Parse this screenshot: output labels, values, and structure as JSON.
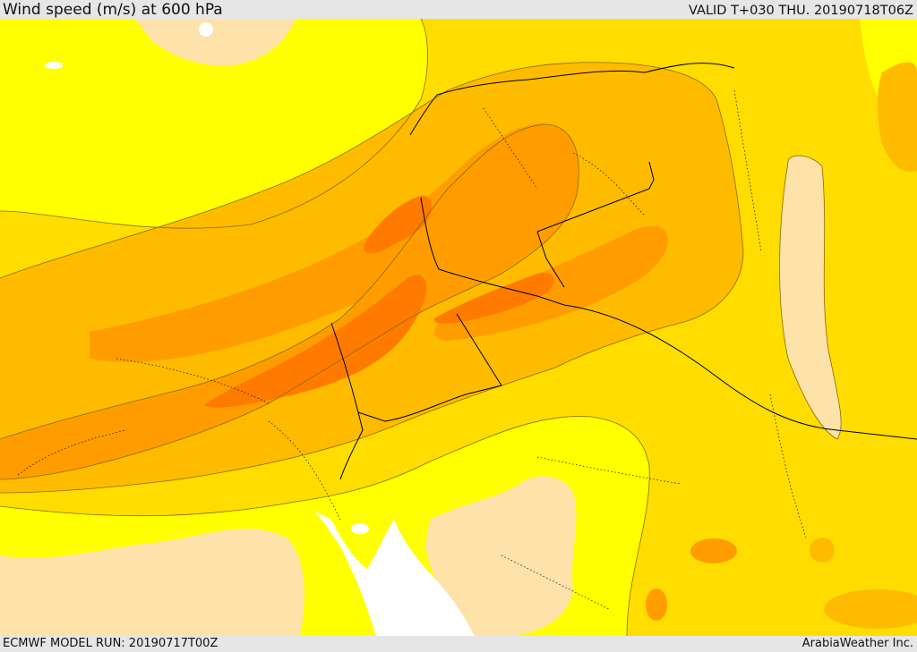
{
  "header": {
    "title": "Wind speed (m/s) at 600 hPa",
    "valid_time": "VALID T+030 THU. 20190718T06Z"
  },
  "footer": {
    "model_run": "ECMWF MODEL RUN: 20190717T00Z",
    "credit": "ArabiaWeather Inc."
  },
  "map": {
    "variable": "wind speed at 600 hPa",
    "fill_colors": {
      "lightest": "#fde2a9",
      "level_1": "#ffff00",
      "level_2": "#ffdd00",
      "level_3": "#ffbb00",
      "level_4": "#ff9d00",
      "level_5": "#ff7b00",
      "sea_mask": "#ffffff"
    },
    "line_colors": {
      "contour": "#8a6a00",
      "border": "#000000"
    }
  }
}
